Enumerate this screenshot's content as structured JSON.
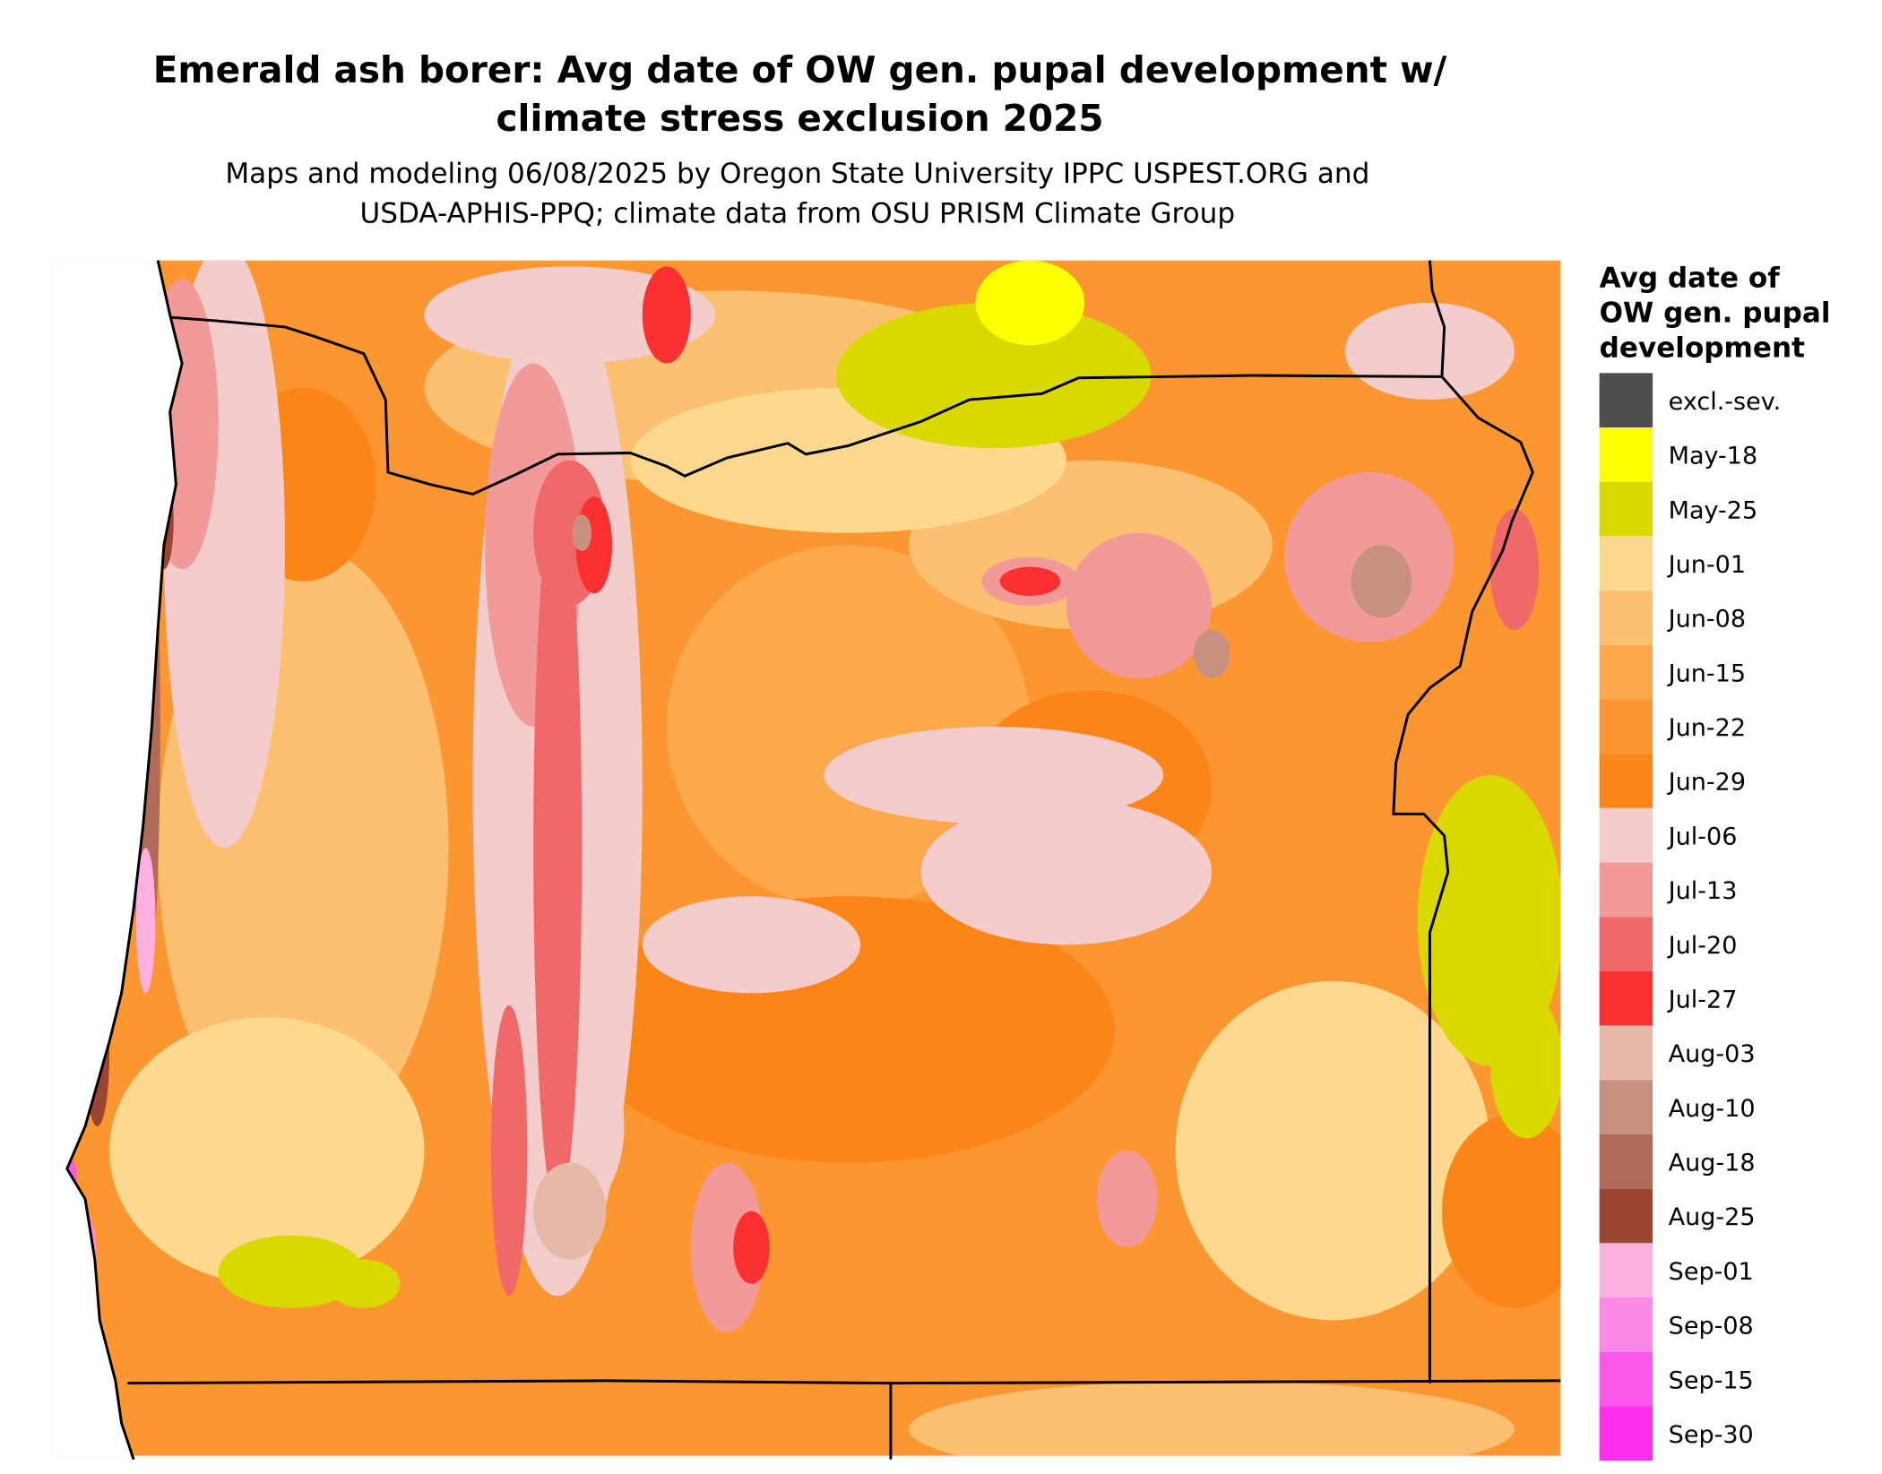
{
  "title": [
    "Emerald ash borer: Avg date of OW gen. pupal development w/",
    "climate stress exclusion 2025"
  ],
  "subtitle": [
    "Maps and modeling 06/08/2025 by Oregon State University IPPC USPEST.ORG and",
    "USDA-APHIS-PPQ; climate data from OSU PRISM Climate Group"
  ],
  "legend": {
    "title": [
      "Avg date of",
      "OW gen. pupal",
      "development"
    ],
    "items": [
      {
        "label": "excl.-sev.",
        "color": "#4d4d4d"
      },
      {
        "label": "May-18",
        "color": "#ffff00"
      },
      {
        "label": "May-25",
        "color": "#d9d900"
      },
      {
        "label": "Jun-01",
        "color": "#fcd98e"
      },
      {
        "label": "Jun-08",
        "color": "#fcc070"
      },
      {
        "label": "Jun-15",
        "color": "#fca84c"
      },
      {
        "label": "Jun-22",
        "color": "#fc9630"
      },
      {
        "label": "Jun-29",
        "color": "#fc8518"
      },
      {
        "label": "Jul-06",
        "color": "#f5cccc"
      },
      {
        "label": "Jul-13",
        "color": "#f29a9a"
      },
      {
        "label": "Jul-20",
        "color": "#f06868"
      },
      {
        "label": "Jul-27",
        "color": "#fc3030"
      },
      {
        "label": "Aug-03",
        "color": "#e6b8a8"
      },
      {
        "label": "Aug-10",
        "color": "#c89080"
      },
      {
        "label": "Aug-18",
        "color": "#b06a58"
      },
      {
        "label": "Aug-25",
        "color": "#9c4432"
      },
      {
        "label": "Sep-01",
        "color": "#fcb0e0"
      },
      {
        "label": "Sep-08",
        "color": "#fc88e8"
      },
      {
        "label": "Sep-15",
        "color": "#fc58ec"
      },
      {
        "label": "Sep-30",
        "color": "#fc30ec"
      }
    ]
  }
}
